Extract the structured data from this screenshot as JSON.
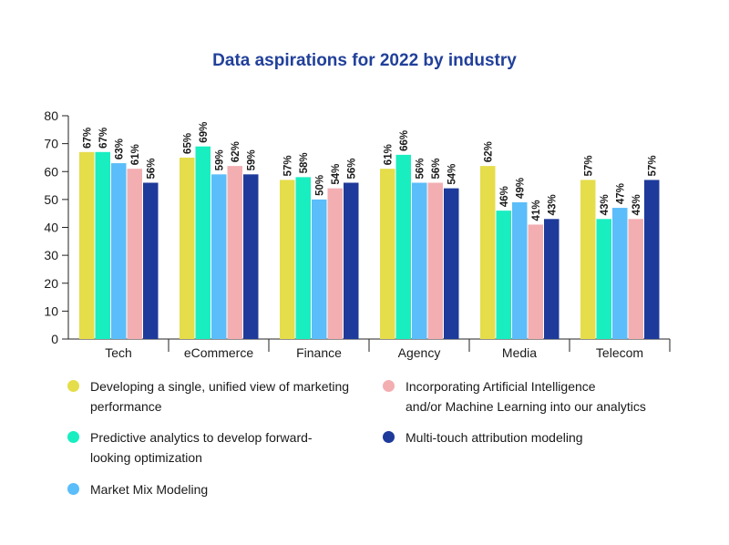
{
  "chart_data": {
    "type": "bar",
    "title": "Data aspirations for 2022 by industry",
    "xlabel": "",
    "ylabel": "",
    "ylim": [
      0,
      80
    ],
    "yticks": [
      0,
      10,
      20,
      30,
      40,
      50,
      60,
      70,
      80
    ],
    "categories": [
      "Tech",
      "eCommerce",
      "Finance",
      "Agency",
      "Media",
      "Telecom"
    ],
    "series": [
      {
        "name": "Developing a single, unified view of marketing performance",
        "color": "#e5dd4a",
        "values": [
          67,
          65,
          57,
          61,
          62,
          57
        ]
      },
      {
        "name": "Predictive analytics to develop forward-looking optimization",
        "color": "#19eec1",
        "values": [
          67,
          69,
          58,
          66,
          46,
          43
        ]
      },
      {
        "name": "Market Mix Modeling",
        "color": "#5bbdf9",
        "values": [
          63,
          59,
          50,
          56,
          49,
          47
        ]
      },
      {
        "name": "Incorporating Artificial Intelligence and/or Machine Learning into our analytics",
        "color": "#f3aeb2",
        "values": [
          61,
          62,
          54,
          56,
          41,
          43
        ]
      },
      {
        "name": "Multi-touch attribution modeling",
        "color": "#1e3a9a",
        "values": [
          56,
          59,
          56,
          54,
          43,
          57
        ]
      }
    ],
    "value_suffix": "%",
    "grid": false,
    "legend_position": "bottom"
  },
  "legend": [
    {
      "line1": "Developing a single, unified view of marketing",
      "line2": "performance",
      "color": "#e5dd4a"
    },
    {
      "line1": "Incorporating Artificial Intelligence",
      "line2": "and/or Machine Learning into our analytics",
      "color": "#f3aeb2"
    },
    {
      "line1": "Predictive analytics to develop forward-",
      "line2": "looking optimization",
      "color": "#19eec1"
    },
    {
      "line1": "Multi-touch attribution modeling",
      "line2": "",
      "color": "#1e3a9a"
    },
    {
      "line1": "Market Mix Modeling",
      "line2": "",
      "color": "#5bbdf9"
    }
  ]
}
